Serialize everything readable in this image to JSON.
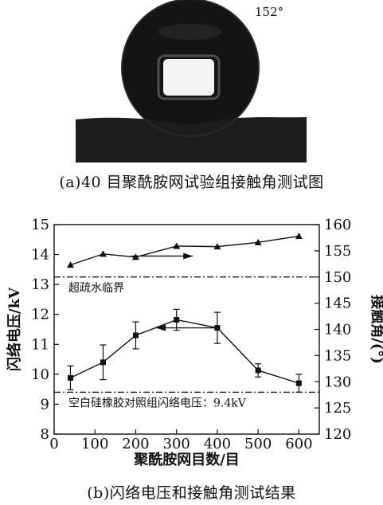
{
  "photo": {
    "angle_label": "152°",
    "caption": "(a)40 目聚酰胺网试验组接触角测试图"
  },
  "caption_b": "(b)闪络电压和接触角测试结果",
  "chart_data": {
    "type": "line",
    "xlabel": "聚酰胺网目数/目",
    "ylabel_left": "闪络电压/kV",
    "ylabel_right": "接触角/(°)",
    "xlim": [
      0,
      650
    ],
    "ylim_left": [
      8,
      15
    ],
    "ylim_right": [
      120,
      160
    ],
    "xticks": [
      0,
      100,
      200,
      300,
      400,
      500,
      600
    ],
    "yticks_left": [
      8,
      9,
      10,
      11,
      12,
      13,
      14,
      15
    ],
    "yticks_right": [
      120,
      125,
      130,
      135,
      140,
      145,
      150,
      155,
      160
    ],
    "series": [
      {
        "axis": "left",
        "marker": "square",
        "x": [
          40,
          120,
          200,
          300,
          400,
          500,
          600
        ],
        "y": [
          9.88,
          10.4,
          11.3,
          11.82,
          11.55,
          10.13,
          9.7
        ],
        "err": [
          0.4,
          0.58,
          0.45,
          0.35,
          0.52,
          0.22,
          0.3
        ]
      },
      {
        "axis": "right",
        "marker": "triangle",
        "x": [
          40,
          120,
          200,
          300,
          400,
          500,
          600
        ],
        "y": [
          152.3,
          154.4,
          153.8,
          155.9,
          155.8,
          156.6,
          157.8
        ]
      }
    ],
    "reference_lines": [
      {
        "axis": "right",
        "value": 150,
        "label": "超疏水临界"
      },
      {
        "axis": "left",
        "value": 9.4,
        "label": "空白硅橡胶对照组闪络电压：9.4kV"
      }
    ],
    "arrows": [
      {
        "from_x": 190,
        "to_x": 340,
        "axis": "right",
        "y": 154.0,
        "direction": "right"
      },
      {
        "from_x": 395,
        "to_x": 250,
        "axis": "left",
        "y": 11.55,
        "direction": "left"
      }
    ]
  }
}
